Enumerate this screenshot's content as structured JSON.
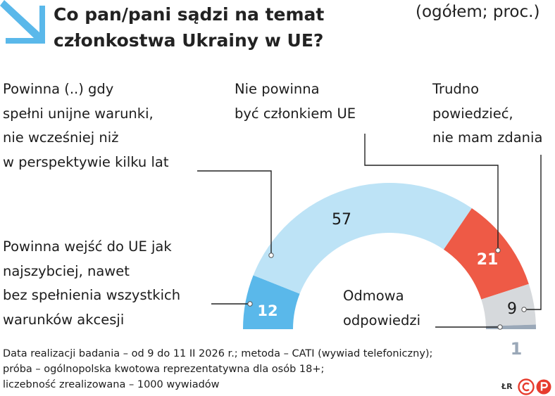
{
  "header": {
    "title": "Co pan/pani sądzi na temat\nczłonkostwa Ukrainy w UE?",
    "subtitle": "(ogółem; proc.)"
  },
  "chart_data": {
    "type": "pie",
    "title": "Co pan/pani sądzi na temat członkostwa Ukrainy w UE?",
    "subtitle": "(ogółem; proc.)",
    "slices": [
      {
        "label": "Powinna wejść do UE jak najszybciej, nawet bez spełnienia wszystkich warunków akcesji",
        "value": 12,
        "color": "#5ab8ea",
        "value_color": "#ffffff"
      },
      {
        "label": "Powinna (..) gdy spełni unijne warunki, nie wcześniej niż w perspektywie kilku lat",
        "value": 57,
        "color": "#bde3f6",
        "value_color": "#1a1a1a"
      },
      {
        "label": "Nie powinna być członkiem UE",
        "value": 21,
        "color": "#ee5a46",
        "value_color": "#ffffff"
      },
      {
        "label": "Trudno powiedzieć, nie mam zdania",
        "value": 9,
        "color": "#d6d9dc",
        "value_color": "#1a1a1a"
      },
      {
        "label": "Odmowa odpowiedzi",
        "value": 1,
        "color": "#9aa8b8",
        "value_color": "#9aa8b8"
      }
    ]
  },
  "labels": {
    "l0": "Powinna wejść do UE jak\nnajszybciej, nawet\nbez spełnienia wszystkich\nwarunków akcesji",
    "l1": "Powinna (..) gdy\nspełni unijne warunki,\nnie wcześniej niż\nw perspektywie kilku lat",
    "l2": "Nie powinna\nbyć członkiem UE",
    "l3": "Trudno\npowiedzieć,\nnie mam zdania",
    "l4": "Odmowa\nodpowiedzi"
  },
  "footer": {
    "note": "Data realizacji badania – od 9 do 11 II 2026 r.; metoda – CATI (wywiad telefoniczny);\npróba – ogólnopolska kwotowa reprezentatywna dla osób 18+;\nliczebność zrealizowana – 1000 wywiadów",
    "credit": "ŁR"
  },
  "icons": {
    "arrow": "arrow-down-right-icon",
    "logo": "cp-logo-icon",
    "arrow_color": "#5ab8ea",
    "logo_color": "#e73c2e"
  }
}
